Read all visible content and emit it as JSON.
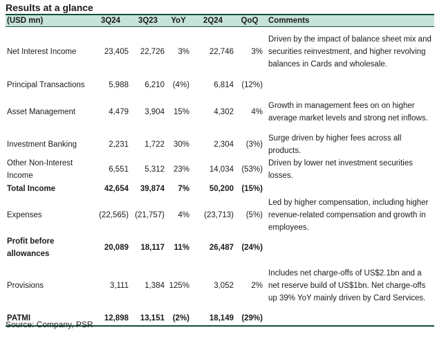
{
  "title": "Results at a glance",
  "header": {
    "unit": "(USD mn)",
    "col1": "3Q24",
    "col2": "3Q23",
    "col3": "YoY",
    "col4": "2Q24",
    "col5": "QoQ",
    "col6": "Comments"
  },
  "rows": [
    {
      "label": "Net Interest Income",
      "q3_24": "23,405",
      "q3_23": "22,726",
      "yoy": "3%",
      "q2_24": "22,746",
      "qoq": "3%",
      "comment": "Driven by the impact of balance sheet mix and securities reinvestment, and higher revolving balances in Cards and wholesale."
    },
    {
      "label": "Principal Transactions",
      "q3_24": "5,988",
      "q3_23": "6,210",
      "yoy": "(4%)",
      "q2_24": "6,814",
      "qoq": "(12%)",
      "comment": ""
    },
    {
      "label": "Asset Management",
      "q3_24": "4,479",
      "q3_23": "3,904",
      "yoy": "15%",
      "q2_24": "4,302",
      "qoq": "4%",
      "comment": "Growth in management fees on on higher average market levels and strong net inflows."
    },
    {
      "label": "Investment Banking",
      "q3_24": "2,231",
      "q3_23": "1,722",
      "yoy": "30%",
      "q2_24": "2,304",
      "qoq": "(3%)",
      "comment": "Surge driven by higher fees across all products."
    },
    {
      "label": "Other Non-Interest Income",
      "q3_24": "6,551",
      "q3_23": "5,312",
      "yoy": "23%",
      "q2_24": "14,034",
      "qoq": "(53%)",
      "comment": "Driven by lower net investment securities losses."
    },
    {
      "label": "Total Income",
      "q3_24": "42,654",
      "q3_23": "39,874",
      "yoy": "7%",
      "q2_24": "50,200",
      "qoq": "(15%)",
      "comment": ""
    },
    {
      "label": "Expenses",
      "q3_24": "(22,565)",
      "q3_23": "(21,757)",
      "yoy": "4%",
      "q2_24": "(23,713)",
      "qoq": "(5%)",
      "comment": "Led by higher compensation, including higher revenue-related compensation and growth in employees."
    },
    {
      "label": "Profit before allowances",
      "q3_24": "20,089",
      "q3_23": "18,117",
      "yoy": "11%",
      "q2_24": "26,487",
      "qoq": "(24%)",
      "comment": ""
    },
    {
      "label": "Provisions",
      "q3_24": "3,111",
      "q3_23": "1,384",
      "yoy": "125%",
      "q2_24": "3,052",
      "qoq": "2%",
      "comment": "Includes net charge-offs of US$2.1bn and a net reserve build of US$1bn. Net charge-offs up 39% YoY mainly driven by Card Services."
    },
    {
      "label": "PATMI",
      "q3_24": "12,898",
      "q3_23": "13,151",
      "yoy": "(2%)",
      "q2_24": "18,149",
      "qoq": "(29%)",
      "comment": ""
    }
  ],
  "source": "Source: Company, PSR"
}
